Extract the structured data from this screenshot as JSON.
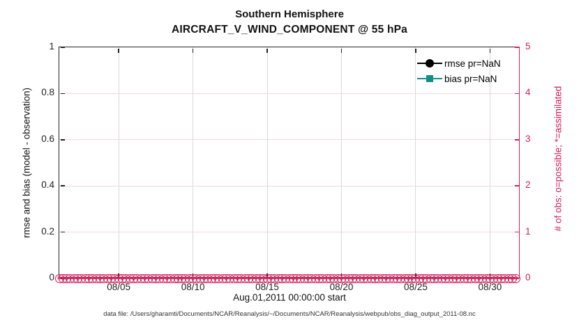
{
  "chart_data": {
    "type": "line",
    "title": "Southern Hemisphere",
    "subtitle": "AIRCRAFT_V_WIND_COMPONENT @ 55 hPa",
    "xlabel": "Aug.01,2011 00:00:00 start",
    "ylabel_left": "rmse and bias (model - observation)",
    "ylabel_right": "# of obs: o=possible; *=assimilated",
    "caption": "data file: /Users/gharamti/Documents/NCAR/Reanalysis/~/Documents/NCAR/Reanalysis/webpub/obs_diag_output_2011-08.nc",
    "grid": true,
    "legend_position": "top-right-inside-no-box",
    "xlim_days": [
      1,
      32
    ],
    "ylim_left": [
      0,
      1
    ],
    "ylim_right": [
      0,
      5
    ],
    "xticks": [
      {
        "label": "08/05",
        "day": 5
      },
      {
        "label": "08/10",
        "day": 10
      },
      {
        "label": "08/15",
        "day": 15
      },
      {
        "label": "08/20",
        "day": 20
      },
      {
        "label": "08/25",
        "day": 25
      },
      {
        "label": "08/30",
        "day": 30
      }
    ],
    "yticks_left": [
      {
        "label": "0",
        "value": 0
      },
      {
        "label": "0.2",
        "value": 0.2
      },
      {
        "label": "0.4",
        "value": 0.4
      },
      {
        "label": "0.6",
        "value": 0.6
      },
      {
        "label": "0.8",
        "value": 0.8
      },
      {
        "label": "1",
        "value": 1
      }
    ],
    "yticks_right": [
      {
        "label": "0",
        "value": 0
      },
      {
        "label": "1",
        "value": 1
      },
      {
        "label": "2",
        "value": 2
      },
      {
        "label": "3",
        "value": 3
      },
      {
        "label": "4",
        "value": 4
      },
      {
        "label": "5",
        "value": 5
      }
    ],
    "legend": [
      {
        "label": "rmse pr=NaN",
        "marker": "filled-circle",
        "color": "#000000"
      },
      {
        "label": "bias pr=NaN",
        "marker": "filled-square",
        "color": "#0f8f88"
      }
    ],
    "series": [
      {
        "name": "rmse",
        "axis": "left",
        "marker": "filled-circle",
        "color": "#000000",
        "values_all": "NaN"
      },
      {
        "name": "bias",
        "axis": "left",
        "marker": "filled-square",
        "color": "#0f8f88",
        "values_all": "NaN"
      },
      {
        "name": "obs possible",
        "axis": "right",
        "marker": "o",
        "color": "#d21e5a",
        "x_start_day": 1,
        "x_step_days": 0.25,
        "n_points": 124,
        "constant_value": 0
      },
      {
        "name": "obs assimilated",
        "axis": "right",
        "marker": "*",
        "color": "#d21e5a",
        "x_start_day": 1,
        "x_step_days": 0.25,
        "n_points": 124,
        "constant_value": 0
      }
    ],
    "colors": {
      "axis": "#1f1f1f",
      "rmse": "#000000",
      "bias": "#0f8f88",
      "obs": "#d21e5a",
      "grid_gray": "#d8d8d8",
      "grid_pink": "#f6d5e2"
    }
  }
}
